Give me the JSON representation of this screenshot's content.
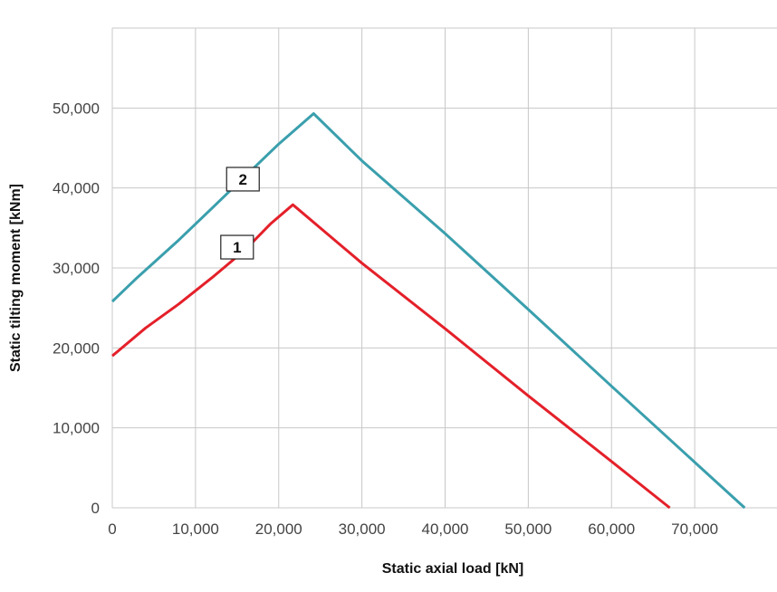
{
  "chart_data": {
    "type": "line",
    "title": "",
    "xlabel": "Static axial load [kN]",
    "ylabel": "Static tilting moment [kNm]",
    "xlim": [
      0,
      80000
    ],
    "ylim": [
      0,
      60000
    ],
    "x_ticks": [
      0,
      10000,
      20000,
      30000,
      40000,
      50000,
      60000,
      70000
    ],
    "x_tick_labels": [
      "0",
      "10,000",
      "20,000",
      "30,000",
      "40,000",
      "50,000",
      "60,000",
      "70,000"
    ],
    "y_ticks": [
      0,
      10000,
      20000,
      30000,
      40000,
      50000
    ],
    "y_tick_labels": [
      "0",
      "10,000",
      "20,000",
      "30,000",
      "40,000",
      "50,000"
    ],
    "grid": true,
    "series": [
      {
        "name": "1",
        "color": "#e4202a",
        "x": [
          0,
          4000,
          8000,
          12000,
          16000,
          19000,
          21700,
          30000,
          40000,
          50000,
          60000,
          67000
        ],
        "y": [
          19000,
          22500,
          25500,
          28800,
          32300,
          35500,
          37900,
          30600,
          22400,
          14000,
          5800,
          0
        ],
        "tag_anchor": [
          15000,
          32600
        ]
      },
      {
        "name": "2",
        "color": "#3a9fad",
        "x": [
          0,
          3000,
          8000,
          12000,
          16000,
          20000,
          24200,
          30000,
          40000,
          50000,
          60000,
          70000,
          76000
        ],
        "y": [
          25800,
          28800,
          33500,
          37500,
          41500,
          45500,
          49300,
          43400,
          34300,
          24800,
          15200,
          5700,
          0
        ],
        "tag_anchor": [
          15700,
          41100
        ]
      }
    ]
  }
}
